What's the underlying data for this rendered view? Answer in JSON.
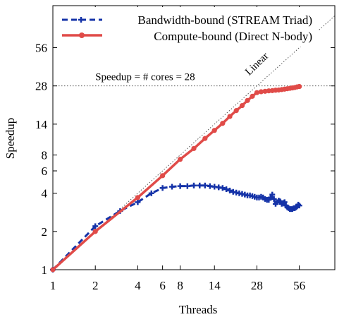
{
  "chart_data": {
    "type": "line",
    "xlabel": "Threads",
    "ylabel": "Speedup",
    "x_scale": "log2",
    "y_scale": "log2",
    "xlim": [
      1,
      100
    ],
    "ylim": [
      1,
      120
    ],
    "x_ticks": [
      1,
      2,
      4,
      6,
      8,
      14,
      28,
      56
    ],
    "y_ticks": [
      1,
      2,
      4,
      6,
      8,
      14,
      28,
      56
    ],
    "grid": false,
    "legend_position": "top-left",
    "series": [
      {
        "name": "Bandwidth-bound (STREAM Triad)",
        "color": "#1533a8",
        "line_style": "dashed",
        "marker": "plus",
        "points": [
          [
            1,
            1.0
          ],
          [
            2,
            2.2
          ],
          [
            3,
            2.9
          ],
          [
            4,
            3.4
          ],
          [
            5,
            4.0
          ],
          [
            6,
            4.4
          ],
          [
            7,
            4.5
          ],
          [
            8,
            4.55
          ],
          [
            9,
            4.55
          ],
          [
            10,
            4.6
          ],
          [
            11,
            4.6
          ],
          [
            12,
            4.6
          ],
          [
            13,
            4.55
          ],
          [
            14,
            4.5
          ],
          [
            15,
            4.45
          ],
          [
            16,
            4.4
          ],
          [
            17,
            4.3
          ],
          [
            18,
            4.2
          ],
          [
            19,
            4.1
          ],
          [
            20,
            4.05
          ],
          [
            21,
            4.0
          ],
          [
            22,
            3.95
          ],
          [
            23,
            3.9
          ],
          [
            24,
            3.85
          ],
          [
            25,
            3.85
          ],
          [
            26,
            3.8
          ],
          [
            27,
            3.75
          ],
          [
            28,
            3.7
          ],
          [
            29,
            3.7
          ],
          [
            30,
            3.75
          ],
          [
            31,
            3.7
          ],
          [
            32,
            3.6
          ],
          [
            33,
            3.55
          ],
          [
            34,
            3.55
          ],
          [
            35,
            3.7
          ],
          [
            36,
            3.9
          ],
          [
            37,
            3.6
          ],
          [
            38,
            3.3
          ],
          [
            39,
            3.4
          ],
          [
            40,
            3.5
          ],
          [
            41,
            3.45
          ],
          [
            42,
            3.3
          ],
          [
            43,
            3.35
          ],
          [
            44,
            3.4
          ],
          [
            45,
            3.2
          ],
          [
            46,
            3.1
          ],
          [
            47,
            3.05
          ],
          [
            48,
            3.0
          ],
          [
            49,
            3.0
          ],
          [
            50,
            3.0
          ],
          [
            51,
            3.05
          ],
          [
            52,
            3.05
          ],
          [
            53,
            3.1
          ],
          [
            54,
            3.15
          ],
          [
            55,
            3.25
          ],
          [
            56,
            3.2
          ]
        ]
      },
      {
        "name": "Compute-bound (Direct N-body)",
        "color": "#e04b48",
        "line_style": "solid",
        "marker": "circle",
        "points": [
          [
            1,
            1.0
          ],
          [
            2,
            2.0
          ],
          [
            4,
            3.7
          ],
          [
            6,
            5.5
          ],
          [
            8,
            7.4
          ],
          [
            10,
            9.0
          ],
          [
            12,
            10.8
          ],
          [
            14,
            12.5
          ],
          [
            16,
            14.2
          ],
          [
            18,
            16.1
          ],
          [
            20,
            17.9
          ],
          [
            22,
            19.6
          ],
          [
            24,
            21.5
          ],
          [
            26,
            23.2
          ],
          [
            28,
            24.8
          ],
          [
            30,
            25.2
          ],
          [
            32,
            25.4
          ],
          [
            34,
            25.6
          ],
          [
            36,
            25.7
          ],
          [
            38,
            25.9
          ],
          [
            40,
            26.0
          ],
          [
            42,
            26.2
          ],
          [
            44,
            26.4
          ],
          [
            46,
            26.6
          ],
          [
            48,
            26.8
          ],
          [
            50,
            27.0
          ],
          [
            52,
            27.2
          ],
          [
            54,
            27.5
          ],
          [
            56,
            27.7
          ]
        ]
      }
    ],
    "reference_lines": [
      {
        "label": "Linear",
        "type": "diagonal",
        "from": [
          1,
          1
        ],
        "to": [
          100,
          100
        ]
      },
      {
        "label": "Speedup = # cores = 28",
        "type": "horizontal",
        "y": 28
      }
    ]
  }
}
